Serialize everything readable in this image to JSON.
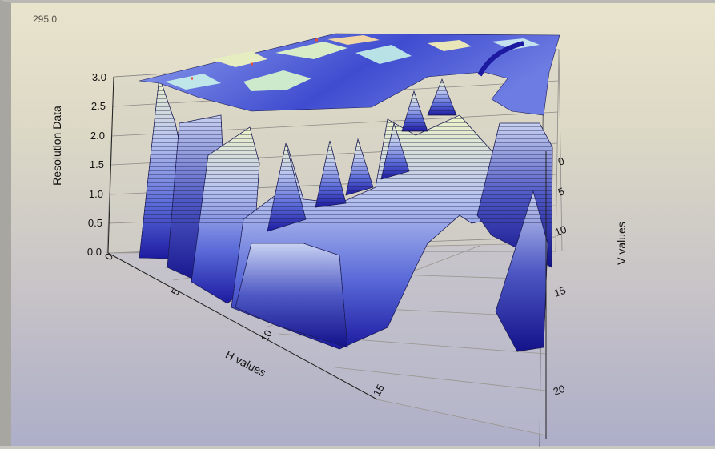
{
  "corner_value": "295.0",
  "chart_data": {
    "type": "surface",
    "zlabel": "Resolution Data",
    "xlabel": "H values",
    "ylabel": "V values",
    "z_ticks": [
      "0.0",
      "0.5",
      "1.0",
      "1.5",
      "2.0",
      "2.5",
      "3.0"
    ],
    "h_ticks": [
      "0",
      "5",
      "10",
      "15"
    ],
    "v_ticks": [
      "0",
      "5",
      "10",
      "15",
      "20"
    ],
    "zlim": [
      0,
      3
    ],
    "colormap": [
      "#1c1aa0",
      "#5a6ad8",
      "#b8c4f0",
      "#eef4c8",
      "#f4d890",
      "#e84a30"
    ],
    "grid": true
  }
}
